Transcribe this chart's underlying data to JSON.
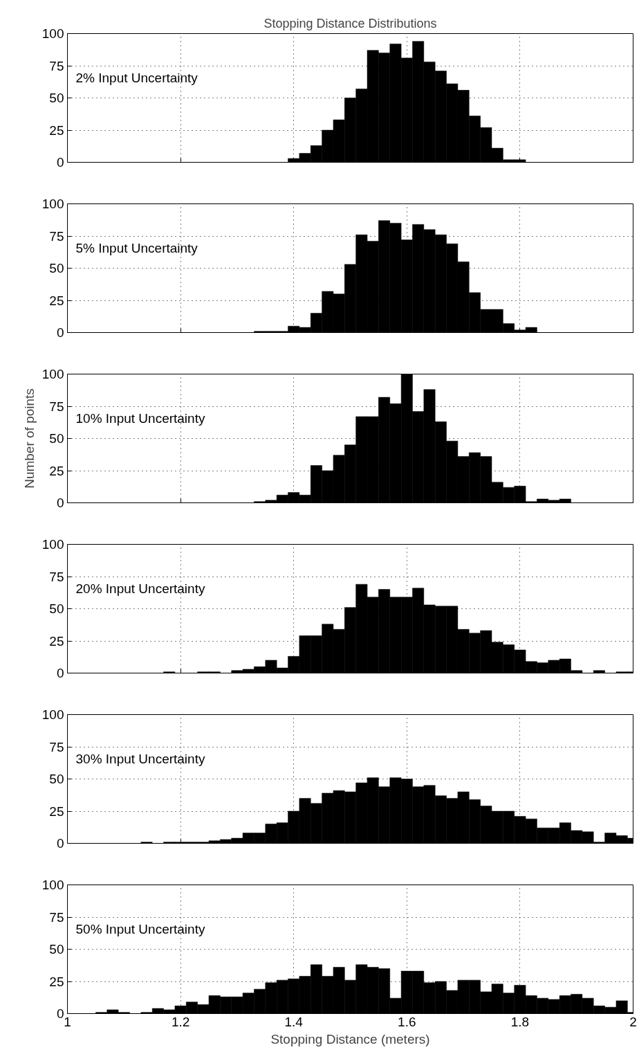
{
  "chart_data": [
    {
      "type": "histogram",
      "title": "Stopping Distance Distributions",
      "annotations": [
        "2% Input Uncertainty"
      ],
      "bins": [
        1.0,
        1.01,
        1.03,
        1.05,
        1.07,
        1.09,
        1.11,
        1.13,
        1.15,
        1.17,
        1.19,
        1.21,
        1.23,
        1.25,
        1.27,
        1.29,
        1.31,
        1.33,
        1.35,
        1.37,
        1.39,
        1.41,
        1.43,
        1.45,
        1.47,
        1.49,
        1.51,
        1.53,
        1.55,
        1.57,
        1.59,
        1.61,
        1.63,
        1.65,
        1.67,
        1.69,
        1.71,
        1.73,
        1.75,
        1.77,
        1.79,
        1.81,
        1.83,
        1.85,
        1.87,
        1.89,
        1.91,
        1.93,
        1.95,
        1.97,
        1.99,
        2.0
      ],
      "values": [
        0,
        0,
        0,
        0,
        0,
        0,
        0,
        0,
        0,
        0,
        0,
        0,
        0,
        0,
        0,
        0,
        0,
        0,
        0,
        0,
        3,
        7,
        13,
        25,
        33,
        50,
        57,
        87,
        85,
        92,
        81,
        94,
        78,
        71,
        61,
        56,
        36,
        27,
        11,
        2,
        2,
        0,
        0,
        0,
        0,
        0,
        0,
        0,
        0,
        0,
        0
      ],
      "color": "#000000",
      "xlim": [
        1,
        2
      ],
      "ylim": [
        0,
        100
      ],
      "xticks": [
        1,
        1.2,
        1.4,
        1.6,
        1.8,
        2
      ],
      "yticks": [
        0,
        25,
        50,
        75,
        100
      ],
      "grid": true,
      "tick_labels": "y"
    },
    {
      "type": "histogram",
      "annotations": [
        "5% Input Uncertainty"
      ],
      "bins": [
        1.0,
        1.01,
        1.03,
        1.05,
        1.07,
        1.09,
        1.11,
        1.13,
        1.15,
        1.17,
        1.19,
        1.21,
        1.23,
        1.25,
        1.27,
        1.29,
        1.31,
        1.33,
        1.35,
        1.37,
        1.39,
        1.41,
        1.43,
        1.45,
        1.47,
        1.49,
        1.51,
        1.53,
        1.55,
        1.57,
        1.59,
        1.61,
        1.63,
        1.65,
        1.67,
        1.69,
        1.71,
        1.73,
        1.75,
        1.77,
        1.79,
        1.81,
        1.83,
        1.85,
        1.87,
        1.89,
        1.91,
        1.93,
        1.95,
        1.97,
        1.99,
        2.0
      ],
      "values": [
        0,
        0,
        0,
        0,
        0,
        0,
        0,
        0,
        0,
        0,
        0,
        0,
        0,
        0,
        0,
        0,
        0,
        1,
        1,
        1,
        5,
        4,
        15,
        32,
        30,
        53,
        76,
        71,
        87,
        85,
        72,
        84,
        80,
        76,
        69,
        55,
        31,
        18,
        18,
        7,
        2,
        4,
        0,
        0,
        0,
        0,
        0,
        0,
        0,
        0,
        0
      ],
      "color": "#000000",
      "xlim": [
        1,
        2
      ],
      "ylim": [
        0,
        100
      ],
      "xticks": [
        1,
        1.2,
        1.4,
        1.6,
        1.8,
        2
      ],
      "yticks": [
        0,
        25,
        50,
        75,
        100
      ],
      "grid": true,
      "tick_labels": "y"
    },
    {
      "type": "histogram",
      "ylabel": "Number of points",
      "annotations": [
        "10% Input Uncertainty"
      ],
      "bins": [
        1.0,
        1.01,
        1.03,
        1.05,
        1.07,
        1.09,
        1.11,
        1.13,
        1.15,
        1.17,
        1.19,
        1.21,
        1.23,
        1.25,
        1.27,
        1.29,
        1.31,
        1.33,
        1.35,
        1.37,
        1.39,
        1.41,
        1.43,
        1.45,
        1.47,
        1.49,
        1.51,
        1.53,
        1.55,
        1.57,
        1.59,
        1.61,
        1.63,
        1.65,
        1.67,
        1.69,
        1.71,
        1.73,
        1.75,
        1.77,
        1.79,
        1.81,
        1.83,
        1.85,
        1.87,
        1.89,
        1.91,
        1.93,
        1.95,
        1.97,
        1.99,
        2.0
      ],
      "values": [
        0,
        0,
        0,
        0,
        0,
        0,
        0,
        0,
        0,
        0,
        0,
        0,
        0,
        0,
        0,
        0,
        0,
        1,
        2,
        6,
        8,
        6,
        29,
        25,
        37,
        45,
        67,
        67,
        82,
        77,
        100,
        71,
        88,
        63,
        48,
        36,
        39,
        36,
        16,
        12,
        13,
        1,
        3,
        2,
        3,
        0,
        0,
        0,
        0,
        0,
        0
      ],
      "color": "#000000",
      "xlim": [
        1,
        2
      ],
      "ylim": [
        0,
        100
      ],
      "xticks": [
        1,
        1.2,
        1.4,
        1.6,
        1.8,
        2
      ],
      "yticks": [
        0,
        25,
        50,
        75,
        100
      ],
      "grid": true,
      "tick_labels": "y"
    },
    {
      "type": "histogram",
      "annotations": [
        "20% Input Uncertainty"
      ],
      "bins": [
        1.0,
        1.01,
        1.03,
        1.05,
        1.07,
        1.09,
        1.11,
        1.13,
        1.15,
        1.17,
        1.19,
        1.21,
        1.23,
        1.25,
        1.27,
        1.29,
        1.31,
        1.33,
        1.35,
        1.37,
        1.39,
        1.41,
        1.43,
        1.45,
        1.47,
        1.49,
        1.51,
        1.53,
        1.55,
        1.57,
        1.59,
        1.61,
        1.63,
        1.65,
        1.67,
        1.69,
        1.71,
        1.73,
        1.75,
        1.77,
        1.79,
        1.81,
        1.83,
        1.85,
        1.87,
        1.89,
        1.91,
        1.93,
        1.95,
        1.97,
        1.99,
        2.0
      ],
      "values": [
        0,
        0,
        0,
        0,
        0,
        0,
        0,
        0,
        0,
        1,
        0,
        0,
        1,
        1,
        0,
        2,
        3,
        5,
        10,
        4,
        13,
        29,
        29,
        38,
        34,
        51,
        69,
        59,
        65,
        59,
        59,
        66,
        53,
        52,
        52,
        34,
        31,
        33,
        24,
        22,
        18,
        9,
        8,
        10,
        11,
        2,
        0,
        2,
        0,
        1,
        1
      ],
      "color": "#000000",
      "xlim": [
        1,
        2
      ],
      "ylim": [
        0,
        100
      ],
      "xticks": [
        1,
        1.2,
        1.4,
        1.6,
        1.8,
        2
      ],
      "yticks": [
        0,
        25,
        50,
        75,
        100
      ],
      "grid": true,
      "tick_labels": "y"
    },
    {
      "type": "histogram",
      "annotations": [
        "30% Input Uncertainty"
      ],
      "bins": [
        1.0,
        1.01,
        1.03,
        1.05,
        1.07,
        1.09,
        1.11,
        1.13,
        1.15,
        1.17,
        1.19,
        1.21,
        1.23,
        1.25,
        1.27,
        1.29,
        1.31,
        1.33,
        1.35,
        1.37,
        1.39,
        1.41,
        1.43,
        1.45,
        1.47,
        1.49,
        1.51,
        1.53,
        1.55,
        1.57,
        1.59,
        1.61,
        1.63,
        1.65,
        1.67,
        1.69,
        1.71,
        1.73,
        1.75,
        1.77,
        1.79,
        1.81,
        1.83,
        1.85,
        1.87,
        1.89,
        1.91,
        1.93,
        1.95,
        1.97,
        1.99,
        2.0
      ],
      "values": [
        0,
        0,
        0,
        0,
        0,
        0,
        0,
        1,
        0,
        1,
        1,
        1,
        1,
        2,
        3,
        4,
        8,
        8,
        15,
        16,
        25,
        35,
        31,
        39,
        41,
        40,
        47,
        51,
        44,
        51,
        50,
        44,
        45,
        37,
        35,
        40,
        34,
        29,
        25,
        25,
        21,
        19,
        12,
        12,
        16,
        10,
        9,
        1,
        8,
        6,
        4
      ],
      "color": "#000000",
      "xlim": [
        1,
        2
      ],
      "ylim": [
        0,
        100
      ],
      "xticks": [
        1,
        1.2,
        1.4,
        1.6,
        1.8,
        2
      ],
      "yticks": [
        0,
        25,
        50,
        75,
        100
      ],
      "grid": true,
      "tick_labels": "y"
    },
    {
      "type": "histogram",
      "xlabel": "Stopping Distance (meters)",
      "annotations": [
        "50% Input Uncertainty"
      ],
      "bins": [
        1.0,
        1.01,
        1.03,
        1.05,
        1.07,
        1.09,
        1.11,
        1.13,
        1.15,
        1.17,
        1.19,
        1.21,
        1.23,
        1.25,
        1.27,
        1.29,
        1.31,
        1.33,
        1.35,
        1.37,
        1.39,
        1.41,
        1.43,
        1.45,
        1.47,
        1.49,
        1.51,
        1.53,
        1.55,
        1.57,
        1.59,
        1.61,
        1.63,
        1.65,
        1.67,
        1.69,
        1.71,
        1.73,
        1.75,
        1.77,
        1.79,
        1.81,
        1.83,
        1.85,
        1.87,
        1.89,
        1.91,
        1.93,
        1.95,
        1.97,
        1.99,
        2.0
      ],
      "values": [
        0,
        0,
        0,
        1,
        3,
        1,
        0,
        1,
        4,
        3,
        6,
        9,
        7,
        14,
        13,
        13,
        16,
        19,
        24,
        26,
        27,
        29,
        38,
        29,
        36,
        26,
        38,
        36,
        35,
        12,
        33,
        33,
        24,
        25,
        18,
        26,
        26,
        17,
        23,
        16,
        22,
        14,
        12,
        11,
        14,
        15,
        12,
        6,
        5,
        10,
        1
      ],
      "color": "#000000",
      "xlim": [
        1,
        2
      ],
      "ylim": [
        0,
        100
      ],
      "xticks": [
        1,
        1.2,
        1.4,
        1.6,
        1.8,
        2
      ],
      "yticks": [
        0,
        25,
        50,
        75,
        100
      ],
      "grid": true
    }
  ]
}
